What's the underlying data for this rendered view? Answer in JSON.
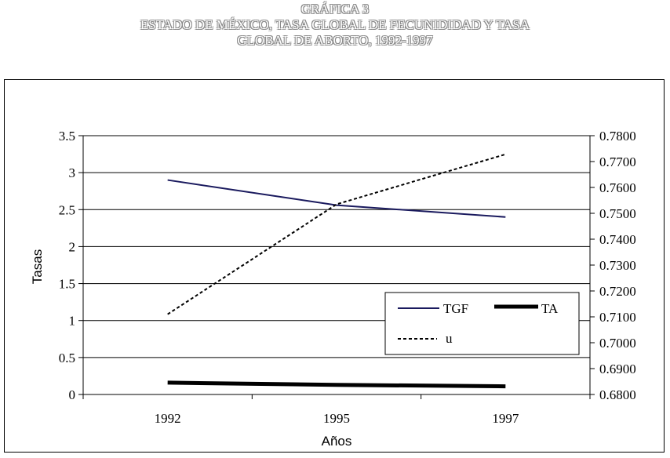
{
  "title": {
    "line1": "GRÁFICA 3",
    "line2": "ESTADO DE MÉXICO, TASA GLOBAL DE FECUNIDIDAD Y TASA",
    "line3": "GLOBAL DE ABORTO, 1992-1997"
  },
  "chart_data": {
    "type": "line",
    "categories": [
      "1992",
      "1995",
      "1997"
    ],
    "xlabel": "Años",
    "ylabel": "Tasas",
    "ylim": [
      0,
      3.5
    ],
    "y_ticks": [
      "0",
      "0.5",
      "1",
      "1.5",
      "2",
      "2.5",
      "3",
      "3.5"
    ],
    "y2lim": [
      0.68,
      0.78
    ],
    "y2_ticks": [
      "0.6800",
      "0.6900",
      "0.7000",
      "0.7100",
      "0.7200",
      "0.7300",
      "0.7400",
      "0.7500",
      "0.7600",
      "0.7700",
      "0.7800"
    ],
    "grid": "horizontal major",
    "legend_position": "lower-right",
    "series": [
      {
        "name": "TGF",
        "axis": "left",
        "values": [
          2.9,
          2.56,
          2.4
        ],
        "color": "#1a1a5e",
        "style": "solid-thin"
      },
      {
        "name": "TA",
        "axis": "left",
        "values": [
          0.16,
          0.13,
          0.11
        ],
        "color": "#000000",
        "style": "solid-thick"
      },
      {
        "name": "u",
        "axis": "right",
        "values": [
          0.711,
          0.7535,
          0.7728
        ],
        "color": "#000000",
        "style": "dotted"
      }
    ]
  }
}
